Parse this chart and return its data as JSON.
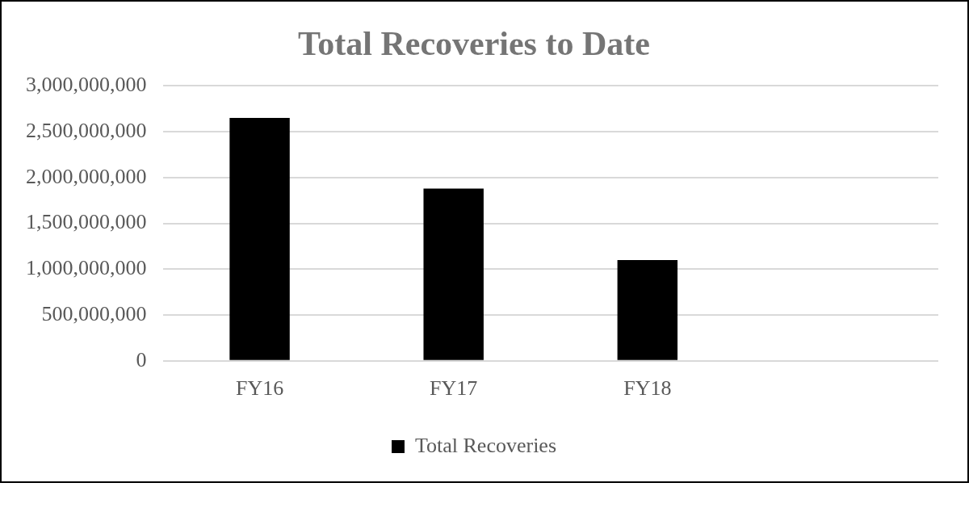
{
  "chart_data": {
    "type": "bar",
    "title": "Total Recoveries to Date",
    "categories": [
      "FY16",
      "FY17",
      "FY18",
      null
    ],
    "series": [
      {
        "name": "Total Recoveries",
        "color": "#000000",
        "values": [
          2650000000,
          1880000000,
          1100000000,
          null
        ]
      }
    ],
    "ylim": [
      0,
      3000000000
    ],
    "yticks": [
      {
        "value": 0,
        "label": "0"
      },
      {
        "value": 500000000,
        "label": "500,000,000"
      },
      {
        "value": 1000000000,
        "label": "1,000,000,000"
      },
      {
        "value": 1500000000,
        "label": "1,500,000,000"
      },
      {
        "value": 2000000000,
        "label": "2,000,000,000"
      },
      {
        "value": 2500000000,
        "label": "2,500,000,000"
      },
      {
        "value": 3000000000,
        "label": "3,000,000,000"
      }
    ],
    "grid": "y",
    "legend": "bottom"
  }
}
